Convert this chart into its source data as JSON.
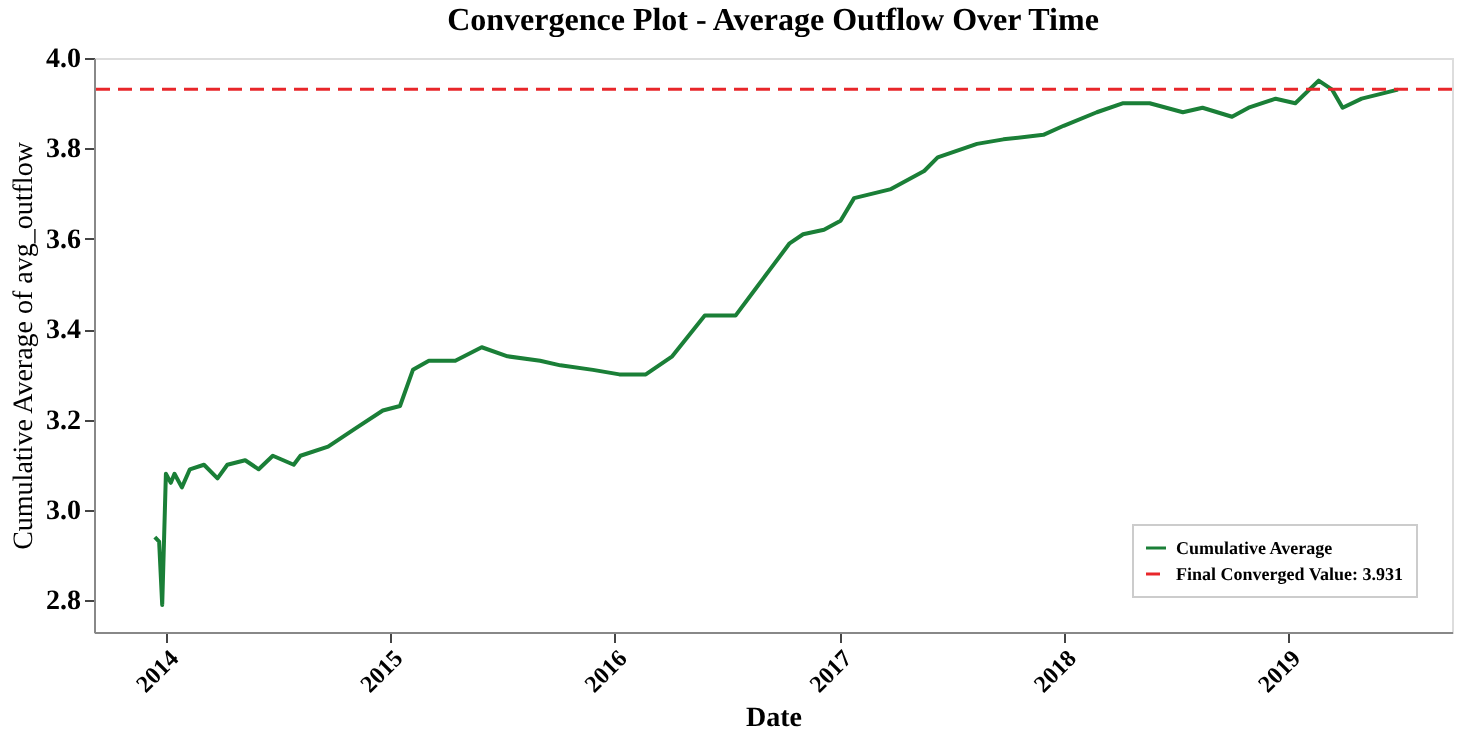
{
  "chart_data": {
    "type": "line",
    "title": "Convergence Plot - Average Outflow Over Time",
    "xlabel": "Date",
    "ylabel": "Cumulative Average of avg_outflow",
    "x": [
      "2013-12-14",
      "2013-12-21",
      "2013-12-26",
      "2014-01-01",
      "2014-01-09",
      "2014-01-15",
      "2014-01-27",
      "2014-02-09",
      "2014-03-04",
      "2014-03-26",
      "2014-04-11",
      "2014-05-10",
      "2014-06-01",
      "2014-06-24",
      "2014-07-28",
      "2014-08-08",
      "2014-09-22",
      "2014-11-05",
      "2014-12-20",
      "2015-01-17",
      "2015-02-07",
      "2015-03-05",
      "2015-04-17",
      "2015-05-30",
      "2015-07-11",
      "2015-09-02",
      "2015-10-05",
      "2015-11-27",
      "2016-01-09",
      "2016-02-21",
      "2016-04-04",
      "2016-05-27",
      "2016-06-29",
      "2016-07-16",
      "2016-08-18",
      "2016-09-09",
      "2016-10-12",
      "2016-11-03",
      "2016-12-07",
      "2017-01-03",
      "2017-01-25",
      "2017-03-26",
      "2017-05-19",
      "2017-06-10",
      "2017-08-13",
      "2017-09-25",
      "2017-11-29",
      "2018-01-01",
      "2018-02-24",
      "2018-04-08",
      "2018-05-21",
      "2018-07-14",
      "2018-08-15",
      "2018-10-02",
      "2018-10-29",
      "2018-12-12",
      "2019-01-13",
      "2019-02-20",
      "2019-03-14",
      "2019-03-31",
      "2019-05-01",
      "2019-06-29"
    ],
    "series": [
      {
        "name": "Cumulative Average",
        "color": "#1a7f37",
        "values": [
          2.94,
          2.93,
          2.79,
          3.08,
          3.06,
          3.08,
          3.05,
          3.09,
          3.1,
          3.07,
          3.1,
          3.11,
          3.09,
          3.12,
          3.1,
          3.12,
          3.14,
          3.18,
          3.22,
          3.23,
          3.31,
          3.33,
          3.33,
          3.36,
          3.34,
          3.33,
          3.32,
          3.31,
          3.3,
          3.3,
          3.34,
          3.43,
          3.43,
          3.43,
          3.49,
          3.53,
          3.59,
          3.61,
          3.62,
          3.64,
          3.69,
          3.71,
          3.75,
          3.78,
          3.81,
          3.82,
          3.83,
          3.85,
          3.88,
          3.9,
          3.9,
          3.88,
          3.89,
          3.87,
          3.89,
          3.91,
          3.9,
          3.95,
          3.93,
          3.89,
          3.91,
          3.93
        ]
      }
    ],
    "ref_lines": [
      {
        "axis": "y",
        "value": 3.931,
        "label": "Final Converged Value: 3.931",
        "color": "#e8262a",
        "line_style": "dashed"
      }
    ],
    "xlim": [
      "2013-09-06",
      "2019-09-25"
    ],
    "xticks": [
      "2014",
      "2015",
      "2016",
      "2017",
      "2018",
      "2019"
    ],
    "ylim": [
      2.73,
      4.0
    ],
    "yticks": [
      2.8,
      {
        "value": 3,
        "label": "3.0"
      },
      3.2,
      3.4,
      3.6,
      3.8,
      {
        "value": 4,
        "label": "4.0"
      }
    ],
    "grid": false,
    "legend": "bottom right",
    "line_style": "solid",
    "marker": "none"
  }
}
